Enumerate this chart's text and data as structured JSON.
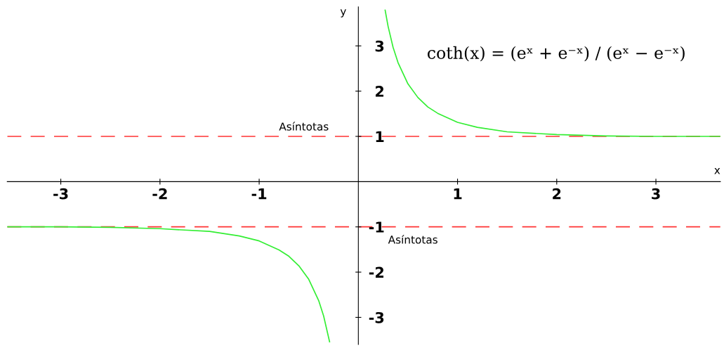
{
  "chart_data": {
    "type": "line",
    "xlabel": "x",
    "ylabel": "y",
    "xlim": [
      -3.54,
      3.65
    ],
    "ylim": [
      -3.6,
      3.86
    ],
    "xticks": [
      -3,
      -2,
      -1,
      1,
      2,
      3
    ],
    "yticks": [
      -3,
      -2,
      -1,
      1,
      2,
      3
    ],
    "grid": false,
    "marker": "none",
    "line_style": "solid",
    "series": [
      {
        "color": "#33ee33",
        "x": [
          0.27,
          0.3,
          0.35,
          0.4,
          0.5,
          0.6,
          0.7,
          0.8,
          1.0,
          1.2,
          1.5,
          2.0,
          2.5,
          3.0,
          3.65
        ],
        "values": [
          3.79,
          3.43,
          2.97,
          2.63,
          2.16,
          1.86,
          1.65,
          1.51,
          1.31,
          1.2,
          1.1,
          1.04,
          1.01,
          1.0,
          1.0
        ]
      },
      {
        "color": "#33ee33",
        "x": [
          -3.54,
          -3.0,
          -2.5,
          -2.0,
          -1.5,
          -1.2,
          -1.0,
          -0.8,
          -0.7,
          -0.6,
          -0.5,
          -0.4,
          -0.35,
          -0.29
        ],
        "values": [
          -1.0,
          -1.0,
          -1.01,
          -1.04,
          -1.1,
          -1.2,
          -1.31,
          -1.51,
          -1.65,
          -1.86,
          -2.16,
          -2.63,
          -2.97,
          -3.54
        ]
      }
    ],
    "ref_lines": [
      {
        "axis": "y",
        "value": 1,
        "color": "#ff3333",
        "line_style": "dashed"
      },
      {
        "axis": "y",
        "value": -1,
        "color": "#ff3333",
        "line_style": "dashed"
      }
    ],
    "annotations": [
      "Asíntotas",
      "Asíntotas",
      "coth(x) = (eˣ + e⁻ˣ) / (eˣ − e⁻ˣ)"
    ]
  }
}
